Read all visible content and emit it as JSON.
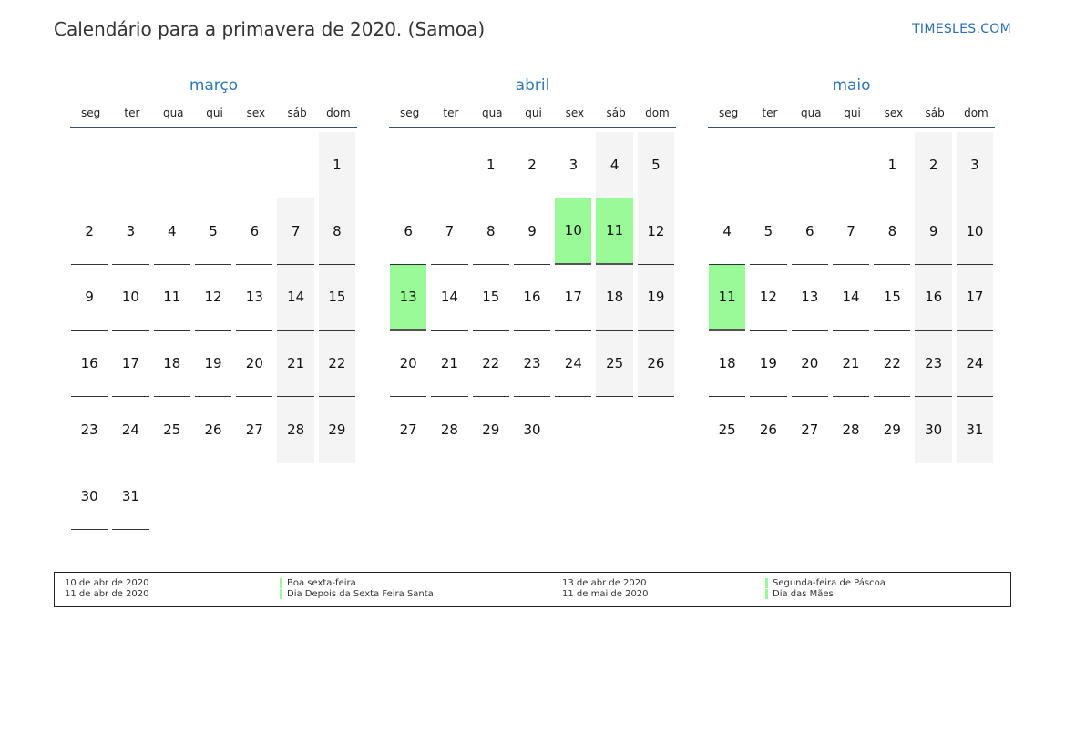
{
  "header": {
    "title": "Calendário para a primavera de 2020. (Samoa)",
    "site": "TIMESLES.COM"
  },
  "weekday_labels": [
    "seg",
    "ter",
    "qua",
    "qui",
    "sex",
    "sáb",
    "dom"
  ],
  "months": [
    {
      "name": "março",
      "start_offset": 6,
      "days": 31,
      "holidays": []
    },
    {
      "name": "abril",
      "start_offset": 2,
      "days": 30,
      "holidays": [
        10,
        11,
        13
      ]
    },
    {
      "name": "maio",
      "start_offset": 4,
      "days": 31,
      "holidays": [
        11
      ]
    }
  ],
  "legend": [
    {
      "date": "10 de abr de 2020",
      "name": "Boa sexta-feira"
    },
    {
      "date": "11 de abr de 2020",
      "name": "Dia Depois da Sexta Feira Santa"
    },
    {
      "date": "13 de abr de 2020",
      "name": "Segunda-feira de Páscoa"
    },
    {
      "date": "11 de mai de 2020",
      "name": "Dia das Mães"
    }
  ],
  "colors": {
    "holiday": "#98fb98",
    "weekend": "#f4f4f4",
    "month_name": "#2e79b5"
  }
}
